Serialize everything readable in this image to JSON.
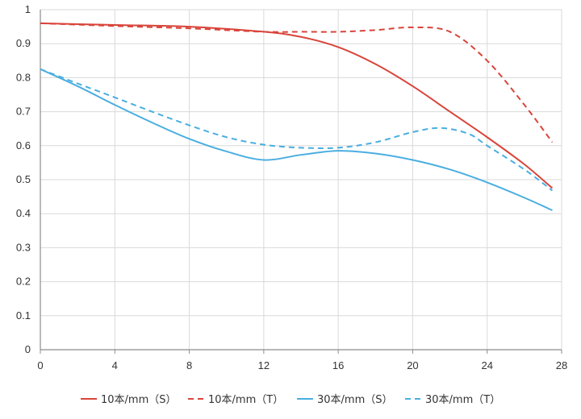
{
  "chart_data": {
    "type": "line",
    "title": "",
    "xlabel": "",
    "ylabel": "",
    "xlim": [
      0,
      28
    ],
    "ylim": [
      0,
      1
    ],
    "x_ticks": [
      0,
      4,
      8,
      12,
      16,
      20,
      24,
      28
    ],
    "y_ticks": [
      0,
      0.1,
      0.2,
      0.3,
      0.4,
      0.5,
      0.6,
      0.7,
      0.8,
      0.9,
      1
    ],
    "grid": true,
    "legend_position": "bottom",
    "series": [
      {
        "name": "10本/mm（S）",
        "color": "#d9443a",
        "dash": "solid",
        "points": [
          [
            0,
            0.96
          ],
          [
            4,
            0.955
          ],
          [
            8,
            0.95
          ],
          [
            12,
            0.935
          ],
          [
            14,
            0.92
          ],
          [
            16,
            0.89
          ],
          [
            18,
            0.84
          ],
          [
            20,
            0.775
          ],
          [
            22,
            0.7
          ],
          [
            24,
            0.625
          ],
          [
            26,
            0.545
          ],
          [
            27.5,
            0.475
          ]
        ]
      },
      {
        "name": "10本/mm（T）",
        "color": "#d9443a",
        "dash": "dashed",
        "points": [
          [
            0,
            0.96
          ],
          [
            4,
            0.952
          ],
          [
            8,
            0.945
          ],
          [
            12,
            0.935
          ],
          [
            14,
            0.935
          ],
          [
            16,
            0.935
          ],
          [
            18,
            0.94
          ],
          [
            20,
            0.948
          ],
          [
            22,
            0.935
          ],
          [
            24,
            0.85
          ],
          [
            26,
            0.72
          ],
          [
            27.5,
            0.61
          ]
        ]
      },
      {
        "name": "30本/mm（S）",
        "color": "#4aaee0",
        "dash": "solid",
        "points": [
          [
            0,
            0.825
          ],
          [
            2,
            0.775
          ],
          [
            4,
            0.72
          ],
          [
            6,
            0.668
          ],
          [
            8,
            0.62
          ],
          [
            10,
            0.583
          ],
          [
            12,
            0.558
          ],
          [
            14,
            0.573
          ],
          [
            16,
            0.585
          ],
          [
            18,
            0.577
          ],
          [
            20,
            0.558
          ],
          [
            22,
            0.53
          ],
          [
            24,
            0.492
          ],
          [
            26,
            0.447
          ],
          [
            27.5,
            0.41
          ]
        ]
      },
      {
        "name": "30本/mm（T）",
        "color": "#4aaee0",
        "dash": "dashed",
        "points": [
          [
            0,
            0.825
          ],
          [
            2,
            0.783
          ],
          [
            4,
            0.742
          ],
          [
            6,
            0.7
          ],
          [
            8,
            0.66
          ],
          [
            10,
            0.625
          ],
          [
            12,
            0.603
          ],
          [
            14,
            0.594
          ],
          [
            16,
            0.594
          ],
          [
            18,
            0.61
          ],
          [
            20,
            0.64
          ],
          [
            21.5,
            0.652
          ],
          [
            23,
            0.635
          ],
          [
            24,
            0.6
          ],
          [
            26,
            0.53
          ],
          [
            27.5,
            0.468
          ]
        ]
      }
    ]
  }
}
